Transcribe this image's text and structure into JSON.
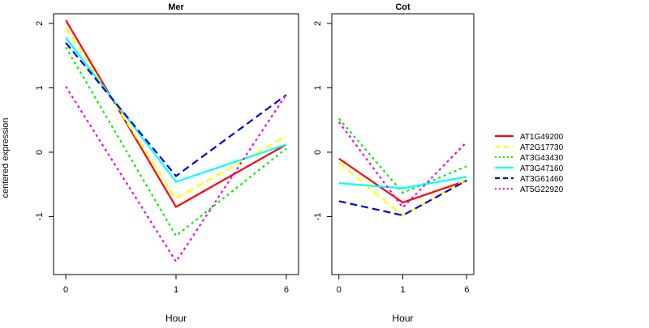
{
  "ylabel": "centered expression",
  "colors": {
    "AT1G49200": "#ff0000",
    "AT2G17730": "#ffff00",
    "AT3G43430": "#00ee00",
    "AT3G47160": "#00ffff",
    "AT3G61460": "#0000dd",
    "AT5G22920": "#ee00ee"
  },
  "legend": {
    "placement": "right",
    "entries": [
      {
        "name": "AT1G49200",
        "style": "solid"
      },
      {
        "name": "AT2G17730",
        "style": "dashed"
      },
      {
        "name": "AT3G43430",
        "style": "dotted"
      },
      {
        "name": "AT3G47160",
        "style": "solid"
      },
      {
        "name": "AT3G61460",
        "style": "dashed"
      },
      {
        "name": "AT5G22920",
        "style": "dotted"
      }
    ]
  },
  "chart_data": [
    {
      "type": "line",
      "title": "Mer",
      "xlabel": "Hour",
      "x_ticks": [
        "0",
        "1",
        "6"
      ],
      "y_ticks": [
        "2",
        "1",
        "0",
        "-1"
      ],
      "y_tick_values": [
        2,
        1,
        0,
        -1
      ],
      "ylim": [
        -1.9,
        2.15
      ],
      "series": [
        {
          "name": "AT1G49200",
          "values": [
            2.05,
            -0.85,
            0.12
          ]
        },
        {
          "name": "AT2G17730",
          "values": [
            1.93,
            -0.72,
            0.25
          ]
        },
        {
          "name": "AT3G43430",
          "values": [
            1.63,
            -1.3,
            0.06
          ]
        },
        {
          "name": "AT3G47160",
          "values": [
            1.78,
            -0.46,
            0.12
          ]
        },
        {
          "name": "AT3G61460",
          "values": [
            1.7,
            -0.37,
            0.89
          ]
        },
        {
          "name": "AT5G22920",
          "values": [
            1.02,
            -1.7,
            0.9
          ]
        }
      ]
    },
    {
      "type": "line",
      "title": "Cot",
      "xlabel": "Hour",
      "x_ticks": [
        "0",
        "1",
        "6"
      ],
      "y_ticks": [
        "2",
        "1",
        "0",
        "-1"
      ],
      "y_tick_values": [
        2,
        1,
        0,
        -1
      ],
      "ylim": [
        -1.9,
        2.15
      ],
      "series": [
        {
          "name": "AT1G49200",
          "values": [
            -0.1,
            -0.78,
            -0.44
          ]
        },
        {
          "name": "AT2G17730",
          "values": [
            -0.16,
            -0.99,
            -0.42
          ]
        },
        {
          "name": "AT3G43430",
          "values": [
            0.52,
            -0.63,
            -0.22
          ]
        },
        {
          "name": "AT3G47160",
          "values": [
            -0.48,
            -0.56,
            -0.38
          ]
        },
        {
          "name": "AT3G61460",
          "values": [
            -0.76,
            -0.98,
            -0.44
          ]
        },
        {
          "name": "AT5G22920",
          "values": [
            0.47,
            -0.86,
            0.16
          ]
        }
      ]
    }
  ]
}
